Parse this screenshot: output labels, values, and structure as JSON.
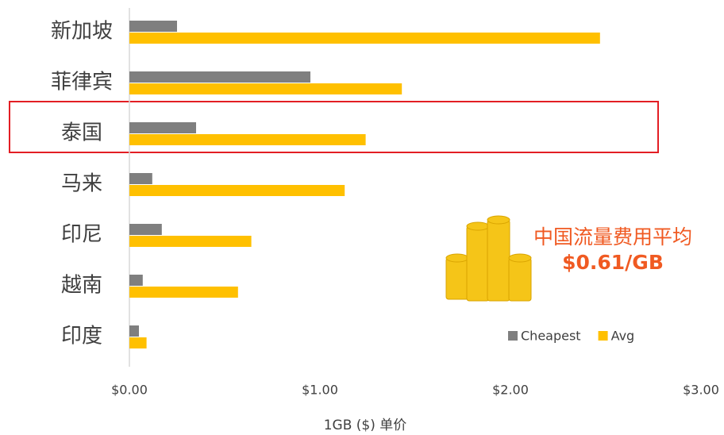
{
  "chart_data": {
    "type": "hbar",
    "x_label": "1GB ($) 单价",
    "annotations": [
      "中国流量费用平均",
      "$0.61/GB"
    ],
    "categories": [
      "新加坡",
      "菲律宾",
      "泰国",
      "马来",
      "印尼",
      "越南",
      "印度"
    ],
    "series": [
      {
        "name": "Cheapest",
        "color": "#7f7f7f",
        "values": [
          0.25,
          0.95,
          0.35,
          0.12,
          0.17,
          0.07,
          0.05
        ]
      },
      {
        "name": "Avg",
        "color": "#ffc000",
        "values": [
          2.47,
          1.43,
          1.24,
          1.13,
          0.64,
          0.57,
          0.09
        ]
      }
    ],
    "xlim": [
      0,
      3
    ],
    "xticks": [
      {
        "value": 0,
        "label": "$0.00"
      },
      {
        "value": 1,
        "label": "$1.00"
      },
      {
        "value": 2,
        "label": "$2.00"
      },
      {
        "value": 3,
        "label": "$3.00"
      }
    ]
  }
}
